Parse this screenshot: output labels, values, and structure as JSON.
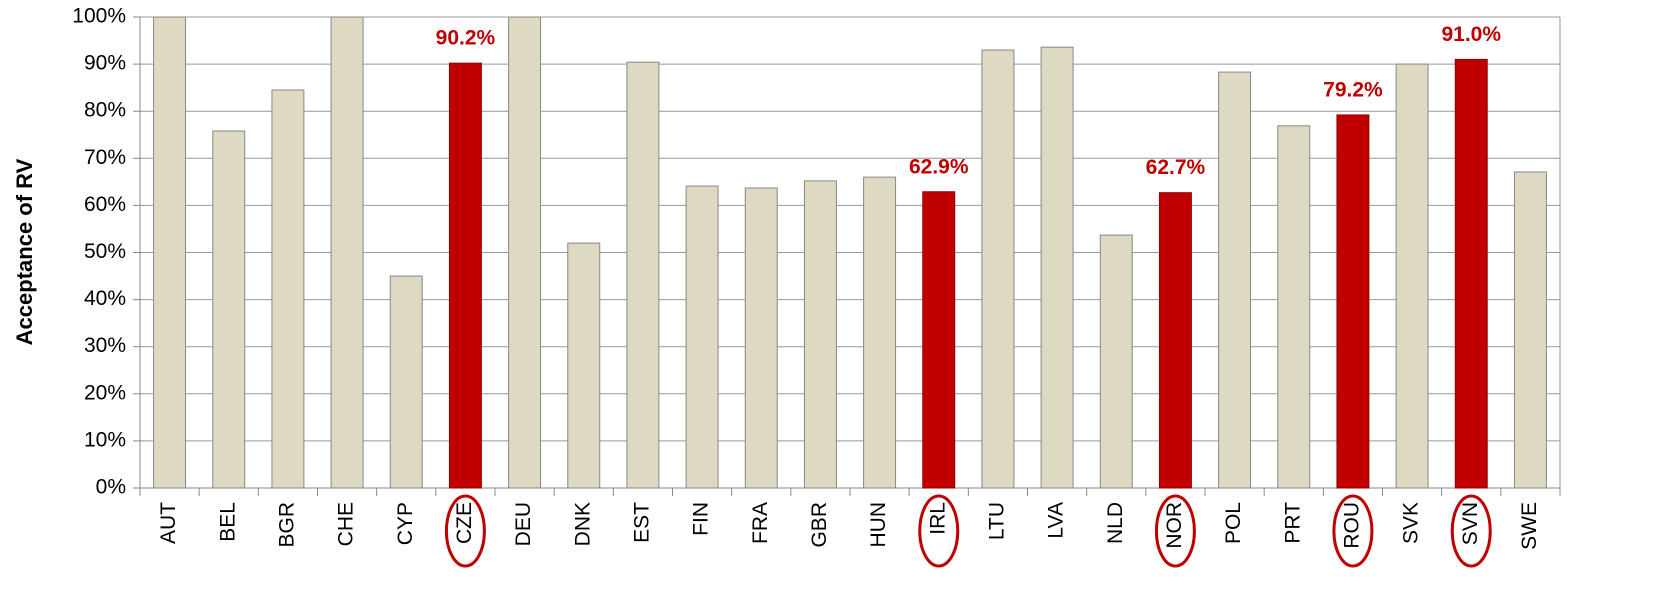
{
  "chart_data": {
    "type": "bar",
    "y_label": "Acceptance of RV",
    "categories": [
      "AUT",
      "BEL",
      "BGR",
      "CHE",
      "CYP",
      "CZE",
      "DEU",
      "DNK",
      "EST",
      "FIN",
      "FRA",
      "GBR",
      "HUN",
      "IRL",
      "LTU",
      "LVA",
      "NLD",
      "NOR",
      "POL",
      "PRT",
      "ROU",
      "SVK",
      "SVN",
      "SWE"
    ],
    "values": [
      100,
      75.8,
      84.5,
      100,
      45,
      90.2,
      100,
      52,
      90.4,
      64.1,
      63.7,
      65.2,
      66,
      62.9,
      93,
      93.6,
      53.7,
      62.7,
      88.3,
      76.9,
      79.2,
      90,
      91.0,
      67.1
    ],
    "value_labels": [
      null,
      null,
      null,
      null,
      null,
      "90.2%",
      null,
      null,
      null,
      null,
      null,
      null,
      null,
      "62.9%",
      null,
      null,
      null,
      "62.7%",
      null,
      null,
      "79.2%",
      null,
      "91.0%",
      null
    ],
    "colors": [
      "#ddd9c3",
      "#ddd9c3",
      "#ddd9c3",
      "#ddd9c3",
      "#ddd9c3",
      "#c00000",
      "#ddd9c3",
      "#ddd9c3",
      "#ddd9c3",
      "#ddd9c3",
      "#ddd9c3",
      "#ddd9c3",
      "#ddd9c3",
      "#c00000",
      "#ddd9c3",
      "#ddd9c3",
      "#ddd9c3",
      "#c00000",
      "#ddd9c3",
      "#ddd9c3",
      "#c00000",
      "#ddd9c3",
      "#c00000",
      "#ddd9c3"
    ],
    "ylim": [
      0,
      100
    ],
    "yticks": [
      {
        "value": 0,
        "label": "0%"
      },
      {
        "value": 10,
        "label": "10%"
      },
      {
        "value": 20,
        "label": "20%"
      },
      {
        "value": 30,
        "label": "30%"
      },
      {
        "value": 40,
        "label": "40%"
      },
      {
        "value": 50,
        "label": "50%"
      },
      {
        "value": 60,
        "label": "60%"
      },
      {
        "value": 70,
        "label": "70%"
      },
      {
        "value": 80,
        "label": "80%"
      },
      {
        "value": 90,
        "label": "90%"
      },
      {
        "value": 100,
        "label": "100%"
      }
    ],
    "grid": true
  }
}
